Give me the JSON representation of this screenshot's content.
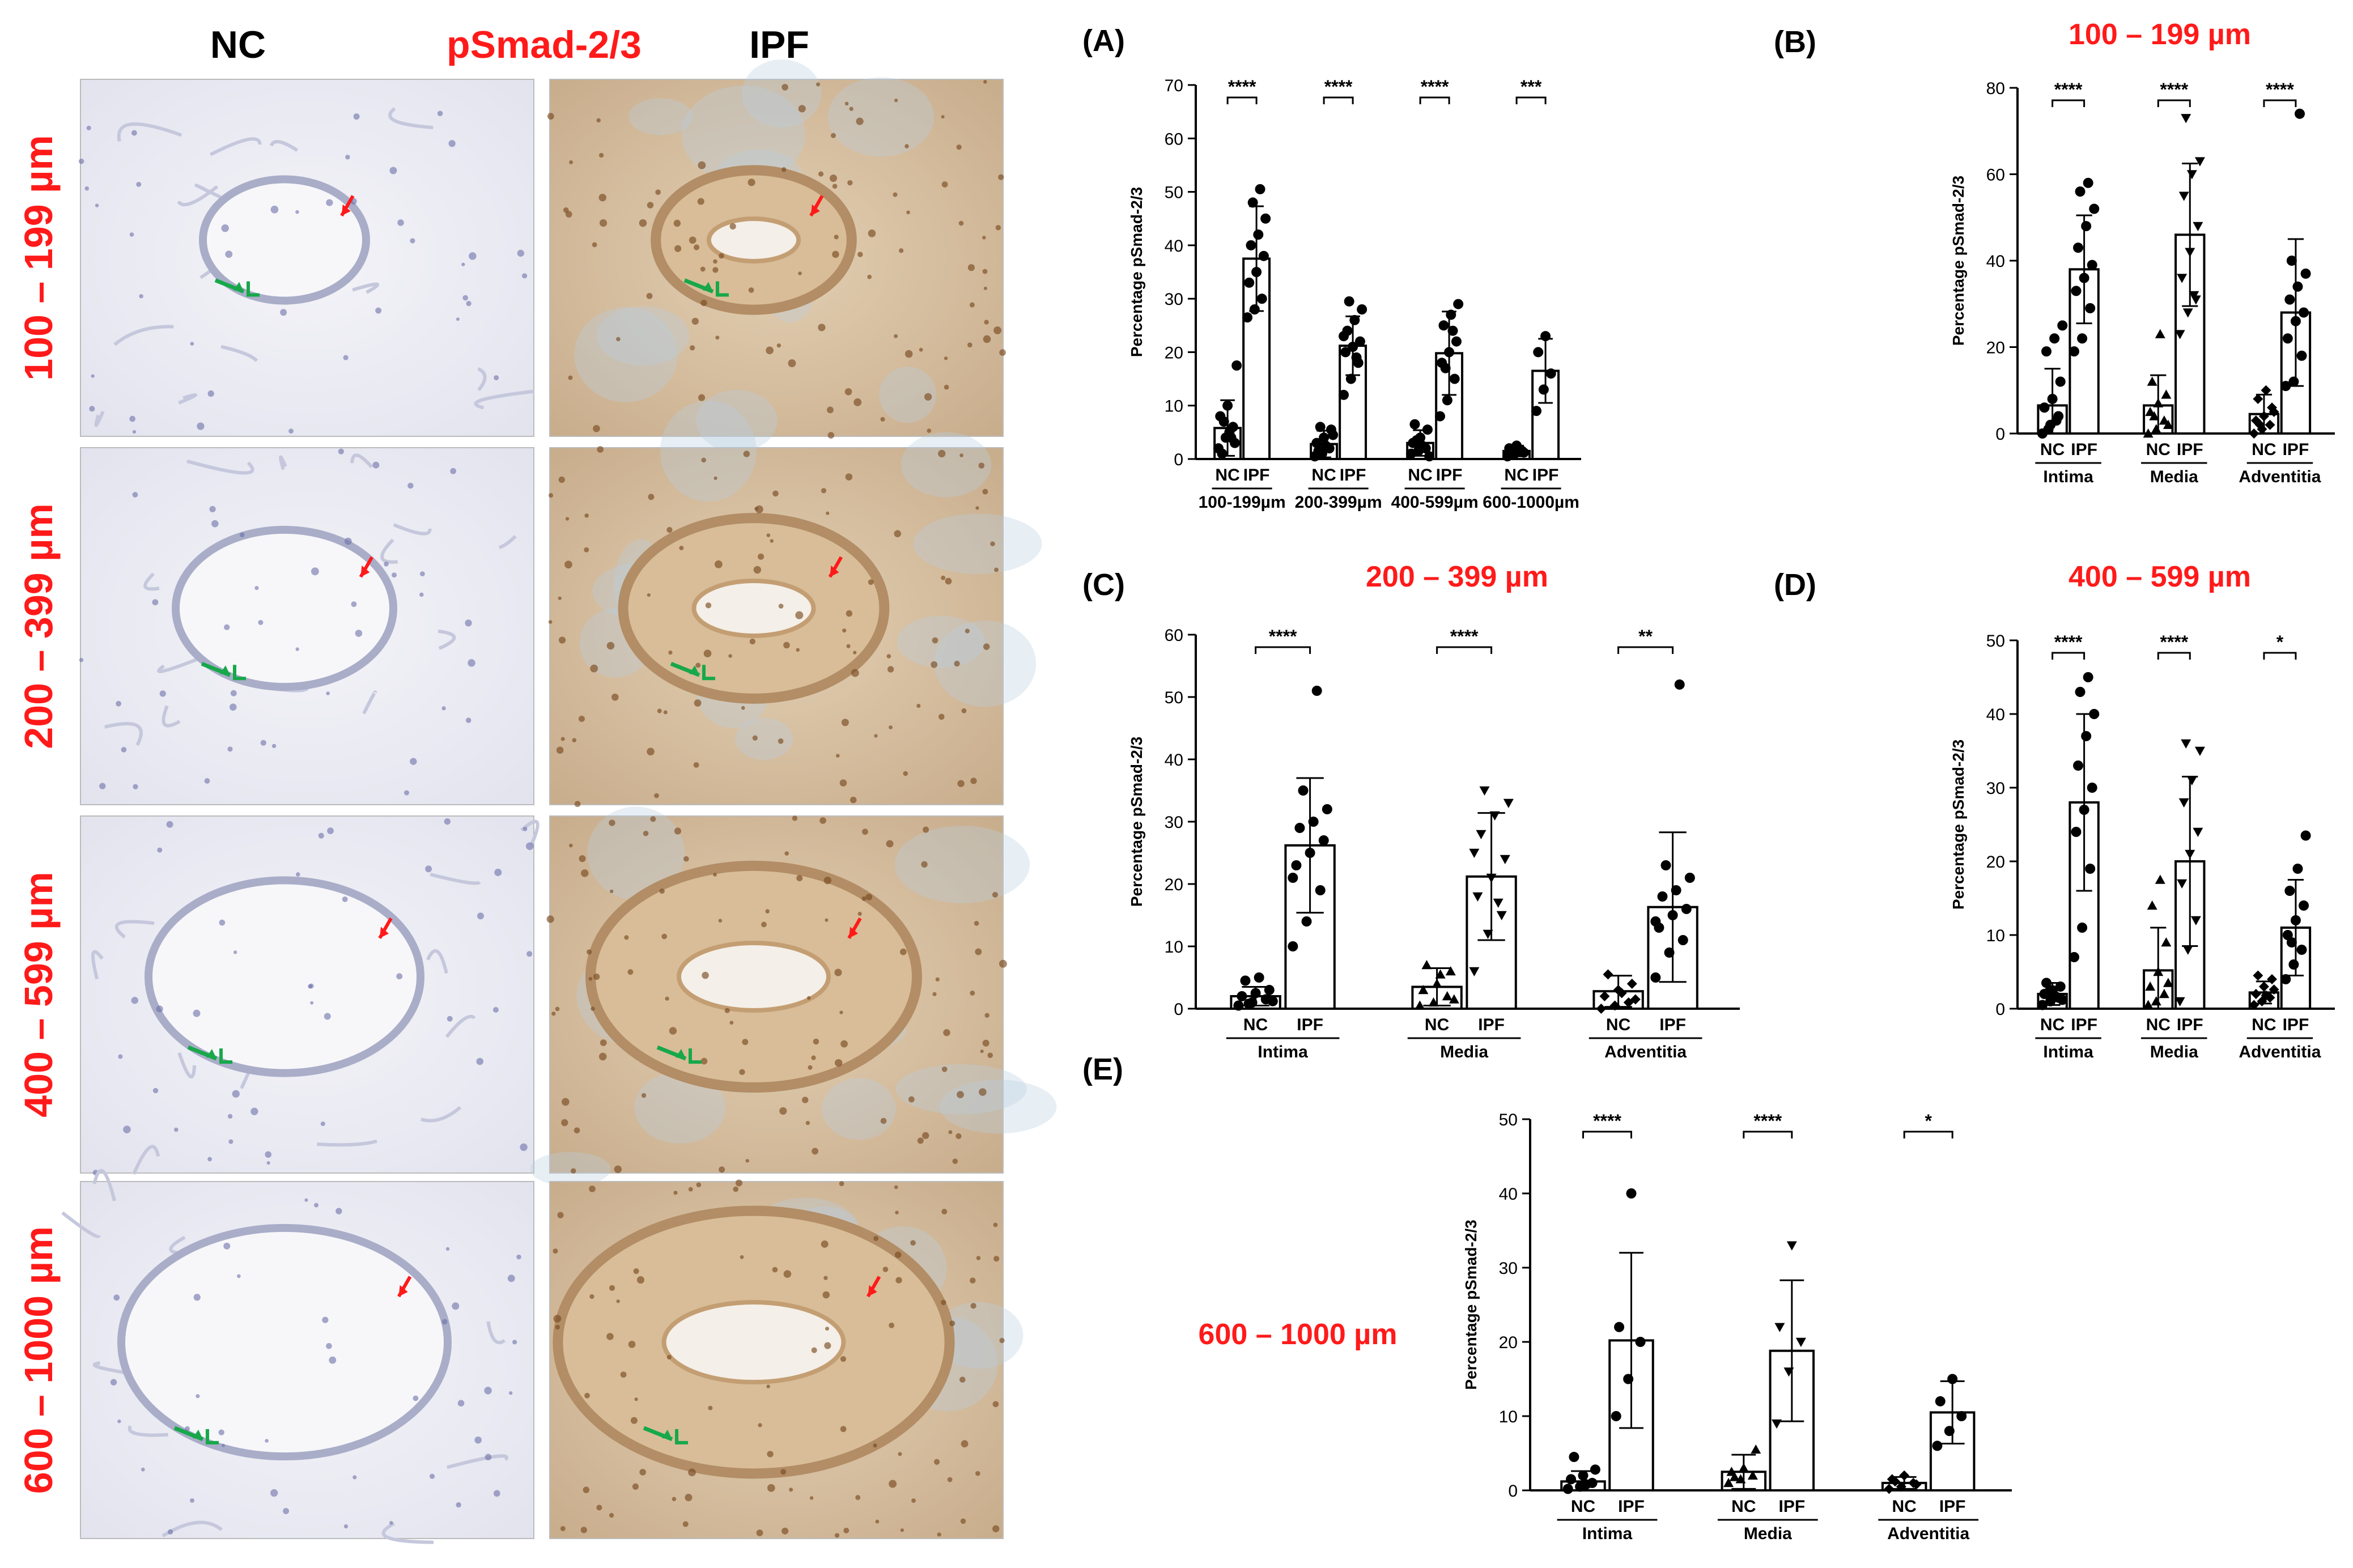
{
  "micrographs": {
    "col_headers": [
      "NC",
      "pSmad-2/3",
      "IPF"
    ],
    "row_labels": [
      "100 – 199 µm",
      "200 – 399 µm",
      "400 – 599 µm",
      "600 – 1000 µm"
    ]
  },
  "colors": {
    "red": "#ff1a1a",
    "black": "#000000",
    "green": "#17a84a",
    "nc_tissue": "#c5c8dc",
    "ipf_tissue": "#c9b294"
  },
  "chart_data": [
    {
      "type": "bar",
      "panel": "(A)",
      "title": "",
      "ylabel": "Percentage pSmad-2/3",
      "ylim": [
        0,
        70
      ],
      "yticks": [
        0,
        10,
        20,
        30,
        40,
        50,
        60,
        70
      ],
      "group_labels": [
        "100-199µm",
        "200-399µm",
        "400-599µm",
        "600-1000µm"
      ],
      "bar_labels": [
        "NC",
        "IPF"
      ],
      "bars": [
        {
          "group": 0,
          "label": "NC",
          "mean": 5.8,
          "sd": 5.2,
          "points": [
            2,
            4,
            6,
            8,
            10,
            3,
            1,
            5,
            17.5,
            7,
            4
          ]
        },
        {
          "group": 0,
          "label": "IPF",
          "mean": 37.5,
          "sd": 9.8,
          "points": [
            26.5,
            28,
            30,
            33,
            35,
            38,
            40,
            42,
            45,
            48,
            50.5
          ]
        },
        {
          "group": 1,
          "label": "NC",
          "mean": 2.8,
          "sd": 2.5,
          "points": [
            0.5,
            1,
            2,
            3,
            4,
            5.5,
            1.5,
            2.5,
            4.5,
            6
          ]
        },
        {
          "group": 1,
          "label": "IPF",
          "mean": 21.2,
          "sd": 5.5,
          "points": [
            12,
            15,
            18,
            20,
            21,
            22,
            24,
            26,
            28,
            29.5,
            19,
            23
          ]
        },
        {
          "group": 2,
          "label": "NC",
          "mean": 3.0,
          "sd": 2.4,
          "points": [
            1,
            1.5,
            2,
            3,
            4,
            5.5,
            6.5,
            2.5,
            0.5,
            3.5
          ]
        },
        {
          "group": 2,
          "label": "IPF",
          "mean": 19.8,
          "sd": 7.8,
          "points": [
            8,
            11,
            15,
            18,
            20,
            22,
            25,
            27,
            29,
            17,
            24
          ]
        },
        {
          "group": 3,
          "label": "NC",
          "mean": 1.5,
          "sd": 1.0,
          "points": [
            0.5,
            1,
            1.5,
            2,
            2.5,
            1.2,
            0.8,
            1.8
          ]
        },
        {
          "group": 3,
          "label": "IPF",
          "mean": 16.5,
          "sd": 6.0,
          "points": [
            9,
            13,
            16,
            20,
            23
          ]
        }
      ],
      "significance": [
        "****",
        "****",
        "****",
        "***"
      ]
    },
    {
      "type": "bar",
      "panel": "(B)",
      "title": "100 – 199 µm",
      "ylabel": "Percentage pSmad-2/3",
      "ylim": [
        0,
        80
      ],
      "yticks": [
        0,
        20,
        40,
        60,
        80
      ],
      "group_labels": [
        "Intima",
        "Media",
        "Adventitia"
      ],
      "bar_labels": [
        "NC",
        "IPF"
      ],
      "bars": [
        {
          "group": 0,
          "label": "NC",
          "mean": 6.5,
          "sd": 8.5,
          "points": [
            0,
            2,
            4,
            6,
            8,
            12,
            19,
            22,
            25,
            1,
            3
          ]
        },
        {
          "group": 0,
          "label": "IPF",
          "mean": 38.0,
          "sd": 12.5,
          "points": [
            19,
            22,
            29,
            33,
            36,
            39,
            43,
            48,
            52,
            56,
            58
          ]
        },
        {
          "group": 1,
          "label": "NC",
          "mean": 6.5,
          "sd": 7.0,
          "points": [
            0,
            1,
            3,
            5,
            7,
            9,
            12,
            23,
            2,
            4
          ]
        },
        {
          "group": 1,
          "label": "IPF",
          "mean": 46.0,
          "sd": 16.5,
          "points": [
            23,
            28,
            31,
            36,
            42,
            48,
            55,
            60,
            63,
            73,
            32
          ]
        },
        {
          "group": 2,
          "label": "NC",
          "mean": 4.5,
          "sd": 4.5,
          "points": [
            0,
            1,
            2,
            3,
            4,
            6,
            8,
            10,
            5,
            2
          ]
        },
        {
          "group": 2,
          "label": "IPF",
          "mean": 28.0,
          "sd": 17.0,
          "points": [
            11,
            12,
            18,
            22,
            26,
            28,
            31,
            34,
            37,
            40,
            74
          ]
        }
      ],
      "significance": [
        "****",
        "****",
        "****"
      ]
    },
    {
      "type": "bar",
      "panel": "(C)",
      "title": "200 – 399 µm",
      "ylabel": "Percentage pSmad-2/3",
      "ylim": [
        0,
        60
      ],
      "yticks": [
        0,
        10,
        20,
        30,
        40,
        50,
        60
      ],
      "group_labels": [
        "Intima",
        "Media",
        "Adventitia"
      ],
      "bar_labels": [
        "NC",
        "IPF"
      ],
      "bars": [
        {
          "group": 0,
          "label": "NC",
          "mean": 2.0,
          "sd": 1.5,
          "points": [
            0.5,
            1,
            1.5,
            2,
            2.5,
            3,
            4.5,
            5,
            1.2,
            0.8
          ]
        },
        {
          "group": 0,
          "label": "IPF",
          "mean": 26.2,
          "sd": 10.8,
          "points": [
            10,
            14,
            19,
            23,
            25,
            27,
            29,
            30,
            32,
            35,
            51,
            21
          ]
        },
        {
          "group": 1,
          "label": "NC",
          "mean": 3.5,
          "sd": 3.0,
          "points": [
            0.5,
            1,
            2,
            3,
            4,
            6,
            7,
            5.5,
            1.5
          ]
        },
        {
          "group": 1,
          "label": "IPF",
          "mean": 21.2,
          "sd": 10.2,
          "points": [
            6,
            12,
            15,
            18,
            21,
            24,
            28,
            31,
            33,
            35,
            17,
            25
          ]
        },
        {
          "group": 2,
          "label": "NC",
          "mean": 2.8,
          "sd": 2.5,
          "points": [
            0,
            0.5,
            1,
            2,
            3,
            4,
            5.5,
            2.5,
            1.5
          ]
        },
        {
          "group": 2,
          "label": "IPF",
          "mean": 16.3,
          "sd": 12.0,
          "points": [
            5,
            9,
            11,
            13,
            15,
            16,
            18,
            19,
            21,
            23,
            52,
            14
          ]
        }
      ],
      "significance": [
        "****",
        "****",
        "**"
      ]
    },
    {
      "type": "bar",
      "panel": "(D)",
      "title": "400 – 599 µm",
      "ylabel": "Percentage pSmad-2/3",
      "ylim": [
        0,
        50
      ],
      "yticks": [
        0,
        10,
        20,
        30,
        40,
        50
      ],
      "group_labels": [
        "Intima",
        "Media",
        "Adventitia"
      ],
      "bar_labels": [
        "NC",
        "IPF"
      ],
      "bars": [
        {
          "group": 0,
          "label": "NC",
          "mean": 2.0,
          "sd": 1.5,
          "points": [
            0.5,
            1,
            1.5,
            2,
            2.5,
            3,
            3.5,
            1.8,
            1.2,
            2.2
          ]
        },
        {
          "group": 0,
          "label": "IPF",
          "mean": 28.0,
          "sd": 12.0,
          "points": [
            7,
            11,
            19,
            24,
            27,
            30,
            33,
            37,
            40,
            43,
            45
          ]
        },
        {
          "group": 1,
          "label": "NC",
          "mean": 5.2,
          "sd": 5.8,
          "points": [
            0.5,
            1,
            2,
            3,
            5,
            9,
            14,
            17.5,
            3.5
          ]
        },
        {
          "group": 1,
          "label": "IPF",
          "mean": 20.0,
          "sd": 11.5,
          "points": [
            1,
            8,
            12,
            17,
            21,
            24,
            28,
            31,
            35,
            36
          ]
        },
        {
          "group": 2,
          "label": "NC",
          "mean": 2.2,
          "sd": 1.5,
          "points": [
            0.5,
            1,
            1.5,
            2,
            3,
            4,
            4.5,
            1.8,
            2.6
          ]
        },
        {
          "group": 2,
          "label": "IPF",
          "mean": 11.0,
          "sd": 6.5,
          "points": [
            4,
            6,
            8,
            10,
            12,
            14,
            16,
            19,
            23.5,
            9
          ]
        }
      ],
      "significance": [
        "****",
        "****",
        "*"
      ]
    },
    {
      "type": "bar",
      "panel": "(E)",
      "title": "600 – 1000 µm",
      "ylabel": "Percentage pSmad-2/3",
      "ylim": [
        0,
        50
      ],
      "yticks": [
        0,
        10,
        20,
        30,
        40,
        50
      ],
      "group_labels": [
        "Intima",
        "Media",
        "Adventitia"
      ],
      "bar_labels": [
        "NC",
        "IPF"
      ],
      "bars": [
        {
          "group": 0,
          "label": "NC",
          "mean": 1.2,
          "sd": 1.4,
          "points": [
            0.2,
            0.5,
            1,
            1.5,
            2,
            2.8,
            4.5,
            0.8
          ]
        },
        {
          "group": 0,
          "label": "IPF",
          "mean": 20.2,
          "sd": 11.8,
          "points": [
            10,
            15,
            20,
            22,
            40
          ]
        },
        {
          "group": 1,
          "label": "NC",
          "mean": 2.5,
          "sd": 2.3,
          "points": [
            1,
            1.5,
            2,
            2.5,
            3,
            5.5,
            1.8
          ]
        },
        {
          "group": 1,
          "label": "IPF",
          "mean": 18.8,
          "sd": 9.5,
          "points": [
            9,
            16,
            20,
            22,
            33
          ]
        },
        {
          "group": 2,
          "label": "NC",
          "mean": 1.0,
          "sd": 0.8,
          "points": [
            0.2,
            0.5,
            1,
            1.5,
            2,
            0.8,
            1.2
          ]
        },
        {
          "group": 2,
          "label": "IPF",
          "mean": 10.5,
          "sd": 4.2,
          "points": [
            6,
            8,
            10,
            12,
            15
          ]
        }
      ],
      "significance": [
        "****",
        "****",
        "*"
      ]
    }
  ]
}
